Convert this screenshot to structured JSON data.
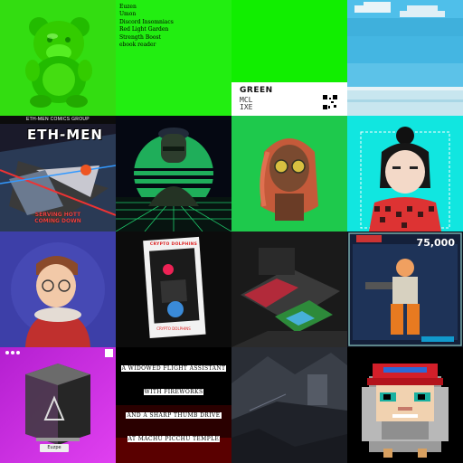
{
  "gallery": {
    "tiles": [
      {
        "name": "green-bear",
        "kind": "image"
      },
      {
        "name": "text-list",
        "kind": "list",
        "items": [
          "Euzen",
          "Umon",
          "Discord Insomniacs",
          "Red Light Garden",
          "Strength Boost",
          "ebook reader"
        ]
      },
      {
        "name": "green-card",
        "kind": "card",
        "title": "GREEN",
        "code_top": "MCL",
        "code_bottom": "IXE"
      },
      {
        "name": "pixel-sky",
        "kind": "image"
      },
      {
        "name": "eth-men-comics",
        "kind": "comic",
        "header": "ETH-MEN COMICS GROUP",
        "logo": "ETH-MEN",
        "bottom_line1": "SERVING HOTT",
        "bottom_line2": "COMING DOWN"
      },
      {
        "name": "synthwave-officer",
        "kind": "image"
      },
      {
        "name": "sunglasses-avatar",
        "kind": "image"
      },
      {
        "name": "anime-girl",
        "kind": "image"
      },
      {
        "name": "3d-boy",
        "kind": "image"
      },
      {
        "name": "crypto-dolphins",
        "kind": "card",
        "label": "CRYPTO DOLPHINS",
        "caption": "CRYPTO DOLPHINS"
      },
      {
        "name": "3d-room",
        "kind": "image"
      },
      {
        "name": "fighter-card",
        "kind": "card",
        "score": "75,000"
      },
      {
        "name": "axie-cube",
        "kind": "card",
        "badge": "Euzpe"
      },
      {
        "name": "poem",
        "kind": "text",
        "lines": [
          "A WIDOWED FLIGHT ASSISTANT",
          "WITH FIREWORKS",
          "AND A SHARP THUMB DRIVE",
          "AT MACHU PICCHU TEMPLE"
        ]
      },
      {
        "name": "grey-landscape",
        "kind": "image"
      },
      {
        "name": "pixel-hat-character",
        "kind": "image"
      }
    ]
  },
  "colors": {
    "green": "#22ee11",
    "teal": "#11e6d8",
    "purple": "#cc22dd"
  }
}
